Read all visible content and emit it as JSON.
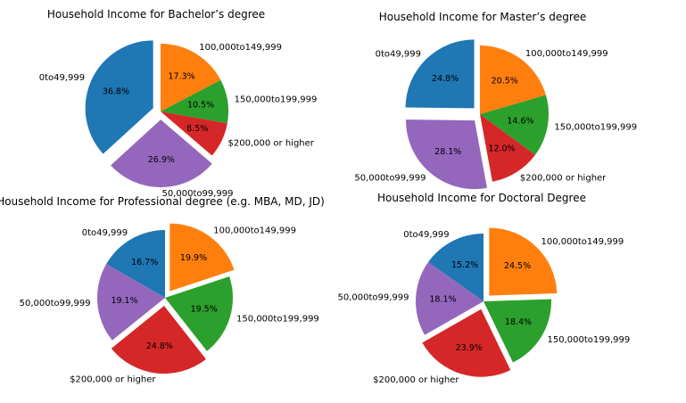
{
  "chart_data": [
    {
      "type": "pie",
      "title": "Household Income for Bachelor’s degree",
      "categories": [
        "$0 to $49,999",
        "$50,000 to $99,999",
        "$200,000 or higher",
        "$150,000 to $199,999",
        "$100,000 to $149,999"
      ],
      "category_labels": [
        "0to49,999",
        "50,000to99,999",
        "$200,000 or higher",
        "150,000to199,999",
        "100,000to149,999"
      ],
      "values": [
        36.8,
        26.9,
        8.5,
        10.5,
        17.3
      ],
      "value_labels": [
        "36.8%",
        "26.9%",
        "8.5%",
        "10.5%",
        "17.3%"
      ],
      "explode": [
        0.12,
        0.12,
        0.0,
        0.0,
        0.0
      ]
    },
    {
      "type": "pie",
      "title": "Household Income for Master’s degree",
      "categories": [
        "$0 to $49,999",
        "$50,000 to $99,999",
        "$200,000 or higher",
        "$150,000 to $199,999",
        "$100,000 to $149,999"
      ],
      "category_labels": [
        "0to49,999",
        "50,000to99,999",
        "$200,000 or higher",
        "150,000to199,999",
        "100,000to149,999"
      ],
      "values": [
        24.8,
        28.1,
        12.0,
        14.6,
        20.5
      ],
      "value_labels": [
        "24.8%",
        "28.1%",
        "12.0%",
        "14.6%",
        "20.5%"
      ],
      "explode": [
        0.12,
        0.12,
        0.0,
        0.0,
        0.0
      ]
    },
    {
      "type": "pie",
      "title": "Household Income for Professional degree (e.g. MBA, MD, JD)",
      "categories": [
        "$0 to $49,999",
        "$50,000 to $99,999",
        "$200,000 or higher",
        "$150,000 to $199,999",
        "$100,000 to $149,999"
      ],
      "category_labels": [
        "0to49,999",
        "50,000to99,999",
        "$200,000 or higher",
        "150,000to199,999",
        "100,000to149,999"
      ],
      "values": [
        16.7,
        19.1,
        24.8,
        19.5,
        19.9
      ],
      "value_labels": [
        "16.7%",
        "19.1%",
        "24.8%",
        "19.5%",
        "19.9%"
      ],
      "explode": [
        0.0,
        0.0,
        0.12,
        0.0,
        0.12
      ]
    },
    {
      "type": "pie",
      "title": "Household Income for Doctoral Degree",
      "categories": [
        "$0 to $49,999",
        "$50,000 to $99,999",
        "$200,000 or higher",
        "$150,000 to $199,999",
        "$100,000 to $149,999"
      ],
      "category_labels": [
        "0to49,999",
        "50,000to99,999",
        "$200,000 or higher",
        "150,000to199,999",
        "100,000to149,999"
      ],
      "values": [
        15.2,
        18.1,
        23.9,
        18.4,
        24.5
      ],
      "value_labels": [
        "15.2%",
        "18.1%",
        "23.9%",
        "18.4%",
        "24.5%"
      ],
      "explode": [
        0.0,
        0.0,
        0.12,
        0.0,
        0.12
      ]
    }
  ],
  "colors": [
    "#1f77b4",
    "#9467bd",
    "#d62728",
    "#2ca02c",
    "#ff7f0e"
  ]
}
